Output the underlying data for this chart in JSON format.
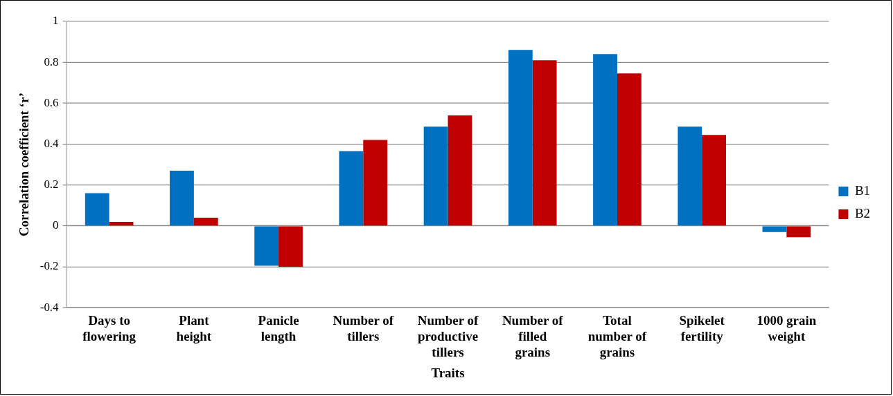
{
  "chart_data": {
    "type": "bar",
    "xlabel": "Traits",
    "ylabel": "Correlation coefficient ‘r’",
    "categories": [
      "Days to flowering",
      "Plant height",
      "Panicle length",
      "Number of tillers",
      "Number of productive tillers",
      "Number of filled grains",
      "Total number of grains",
      "Spikelet fertility",
      "1000 grain weight"
    ],
    "series": [
      {
        "name": "B1",
        "color": "#0070c0",
        "values": [
          0.16,
          0.27,
          -0.195,
          0.365,
          0.485,
          0.86,
          0.84,
          0.485,
          -0.03
        ]
      },
      {
        "name": "B2",
        "color": "#c00000",
        "values": [
          0.02,
          0.04,
          -0.2,
          0.42,
          0.54,
          0.81,
          0.745,
          0.445,
          -0.055
        ]
      }
    ],
    "ylim": [
      -0.4,
      1
    ],
    "yticks": [
      -0.4,
      -0.2,
      0,
      0.2,
      0.4,
      0.6,
      0.8,
      1
    ],
    "grid": "y",
    "legend": "right"
  }
}
